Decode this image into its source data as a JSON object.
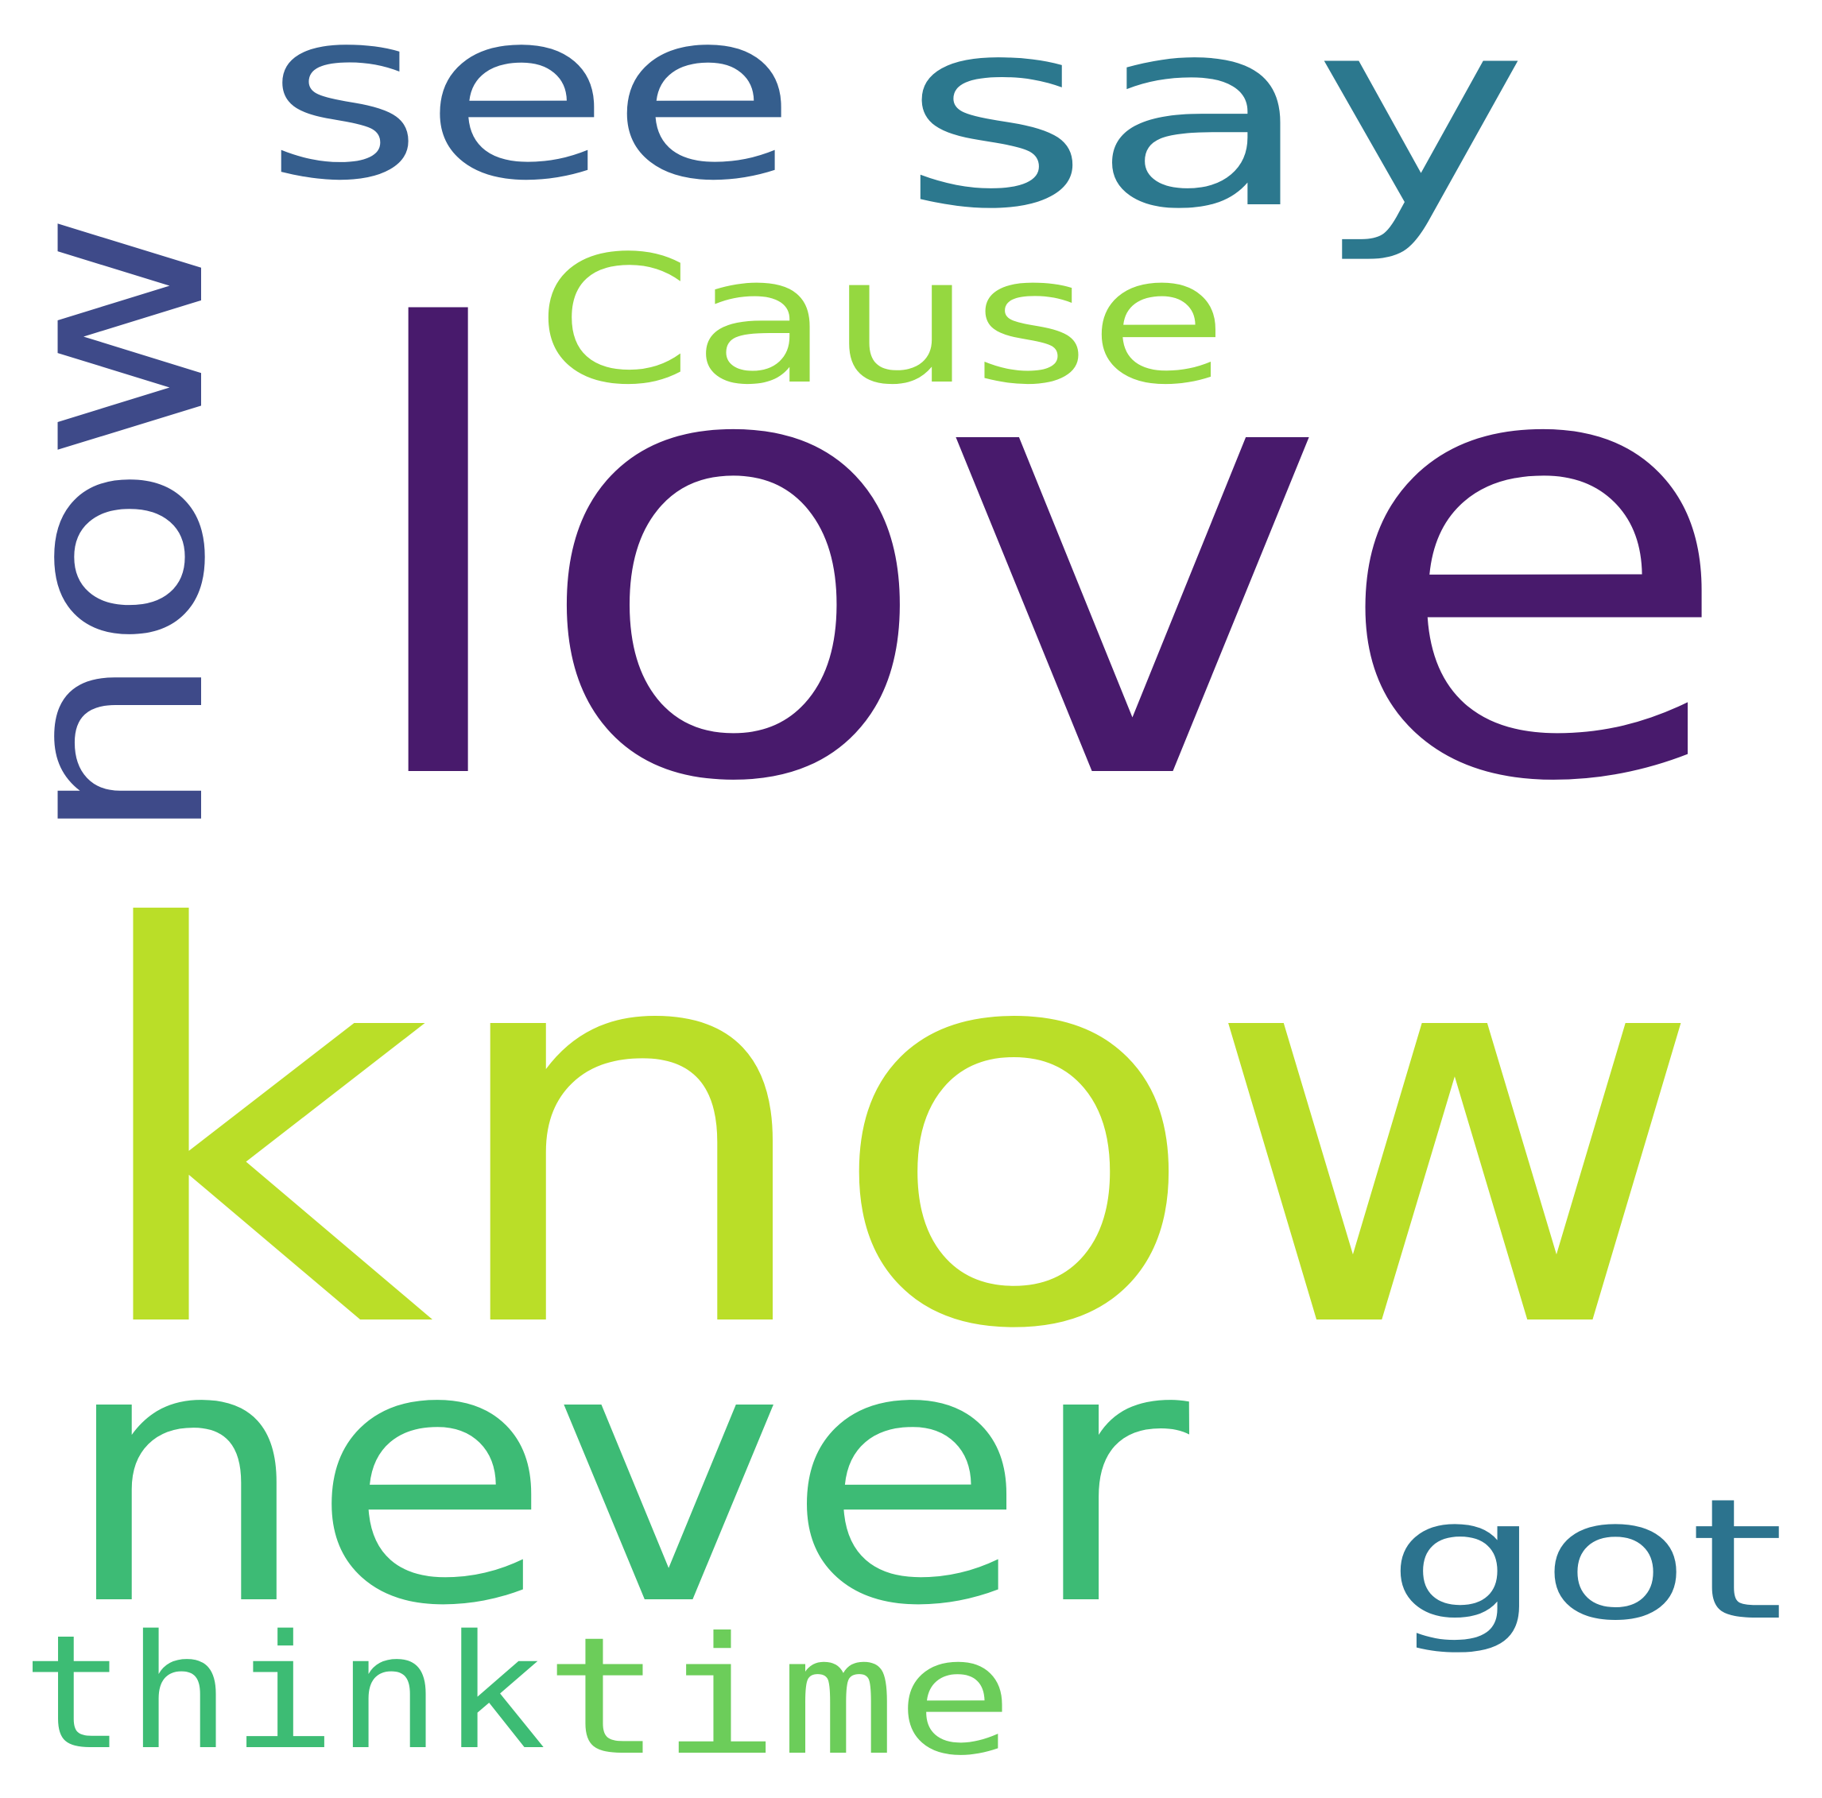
{
  "words": [
    {
      "id": "know",
      "text": "know",
      "color": "#bade28",
      "rotated": false
    },
    {
      "id": "love",
      "text": "love",
      "color": "#481a6c",
      "rotated": false
    },
    {
      "id": "never",
      "text": "never",
      "color": "#3dbb75",
      "rotated": false
    },
    {
      "id": "now",
      "text": "now",
      "color": "#3e4a89",
      "rotated": true
    },
    {
      "id": "see",
      "text": "see",
      "color": "#355e8d",
      "rotated": false
    },
    {
      "id": "say",
      "text": "say",
      "color": "#2c788e",
      "rotated": false
    },
    {
      "id": "cause",
      "text": "Cause",
      "color": "#95d840",
      "rotated": false
    },
    {
      "id": "got",
      "text": "got",
      "color": "#2c738e",
      "rotated": false
    },
    {
      "id": "think",
      "text": "think",
      "color": "#3dbc74",
      "rotated": false
    },
    {
      "id": "time",
      "text": "time",
      "color": "#6ccd5a",
      "rotated": false
    }
  ]
}
